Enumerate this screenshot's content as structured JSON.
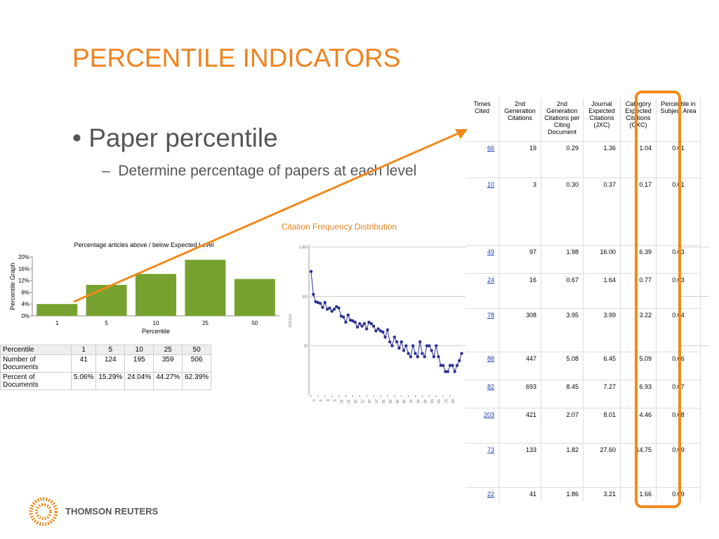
{
  "title": "PERCENTILE INDICATORS",
  "bullets": [
    {
      "text": "Paper percentile",
      "sub": [
        "Determine percentage of papers at each level"
      ]
    }
  ],
  "bar_chart": {
    "type": "bar",
    "title": "Percentage articles above / below Expected Level",
    "ylabel": "Percentile Graph",
    "xlabel": "Percentile",
    "categories": [
      "1",
      "5",
      "10",
      "25",
      "50"
    ],
    "values": [
      4,
      10.5,
      14.2,
      19,
      12.5
    ],
    "color": "#77a22f",
    "ylim": [
      0,
      20
    ],
    "yticks": [
      {
        "value": 0,
        "label": "0%"
      },
      {
        "value": 4,
        "label": "4%"
      },
      {
        "value": 8,
        "label": "8%"
      },
      {
        "value": 12,
        "label": "12%"
      },
      {
        "value": 16,
        "label": "16%"
      },
      {
        "value": 20,
        "label": "20%"
      }
    ]
  },
  "summary_table": {
    "header": [
      "Percentile",
      "1",
      "5",
      "10",
      "25",
      "50"
    ],
    "rows": [
      [
        "Number of Documents",
        "41",
        "124",
        "195",
        "359",
        "506"
      ],
      [
        "Percent of Documents",
        "5.06%",
        "15.29%",
        "24.04%",
        "44.27%",
        "62.39%"
      ]
    ]
  },
  "line_chart": {
    "type": "line",
    "title": "Citation Frequency Distribution",
    "ylabel": "Articles",
    "log_y": true,
    "color": "#2e3192",
    "x": [
      0,
      1,
      2,
      3,
      4,
      5,
      6,
      7,
      8,
      9,
      10,
      11,
      12,
      13,
      14,
      15,
      16,
      17,
      18,
      19,
      20,
      21,
      22,
      23,
      24,
      25,
      26,
      27,
      28,
      29,
      30,
      31,
      32,
      33,
      34,
      35,
      36,
      37,
      38,
      39,
      40,
      41,
      42,
      43,
      44,
      45,
      46,
      47,
      48,
      49,
      50,
      51,
      52,
      53,
      54,
      55,
      56,
      57,
      58,
      59,
      60,
      61,
      62,
      63,
      64,
      65
    ],
    "values": [
      320,
      110,
      78,
      75,
      72,
      60,
      75,
      55,
      58,
      50,
      55,
      62,
      58,
      40,
      38,
      30,
      42,
      33,
      32,
      30,
      24,
      28,
      25,
      28,
      22,
      30,
      28,
      25,
      20,
      22,
      20,
      19,
      15,
      21,
      12,
      10,
      15,
      12,
      9,
      12,
      8,
      10,
      7,
      6,
      10,
      7,
      6,
      12,
      7,
      6,
      10,
      10,
      8,
      6,
      10,
      6,
      4,
      4,
      3,
      3,
      4,
      4,
      3,
      4,
      5,
      7
    ],
    "xlim": [
      0,
      65
    ],
    "xticks": [
      0,
      3,
      6,
      9,
      12,
      15,
      18,
      21,
      24,
      27,
      30,
      33,
      36,
      39,
      42,
      45,
      48,
      51,
      54,
      57,
      60
    ],
    "ylim": [
      1,
      1000
    ],
    "yticks": [
      10,
      100,
      {
        "value": 1000,
        "label": "1,000"
      }
    ]
  },
  "article_table": {
    "header": [
      "Times Cited",
      "2nd Generation Citations",
      "2nd Generation Citations per Citing Document",
      "Journal Expected Citations (JXC)",
      "Category Expected Citations (CXC)",
      "Percentile in Subject Area"
    ],
    "rows": [
      [
        "66",
        "19",
        "0.29",
        "1.36",
        "1.04",
        "0.01"
      ],
      [
        "10",
        "3",
        "0.30",
        "0.37",
        "0.17",
        "0.01"
      ],
      [
        "49",
        "97",
        "1.98",
        "16.00",
        "6.39",
        "0.03"
      ],
      [
        "24",
        "16",
        "0.67",
        "1.64",
        "0.77",
        "0.03"
      ],
      [
        "78",
        "308",
        "3.95",
        "3.99",
        "3.22",
        "0.04"
      ],
      [
        "88",
        "447",
        "5.08",
        "6.45",
        "5.09",
        "0.06"
      ],
      [
        "82",
        "693",
        "8.45",
        "7.27",
        "6.93",
        "0.07"
      ],
      [
        "203",
        "421",
        "2.07",
        "8.01",
        "4.46",
        "0.08"
      ],
      [
        "73",
        "133",
        "1.82",
        "27.60",
        "14.75",
        "0.09"
      ],
      [
        "22",
        "41",
        "1.86",
        "3.21",
        "1.66",
        "0.09"
      ]
    ]
  },
  "logo": "THOMSON REUTERS"
}
